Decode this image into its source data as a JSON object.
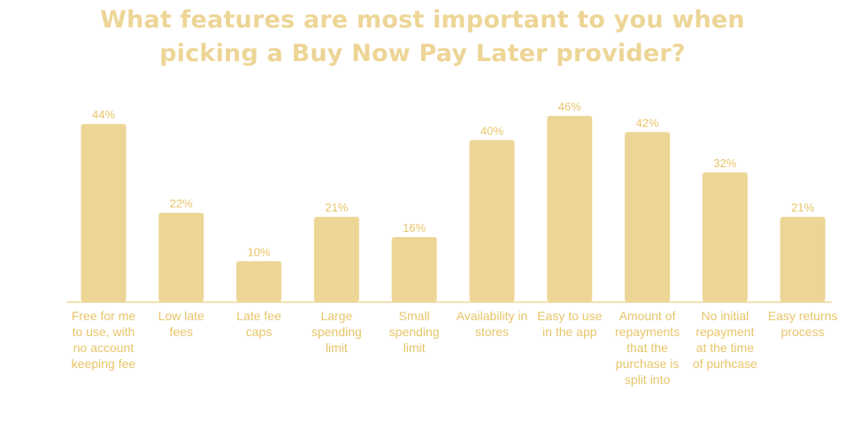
{
  "title_lines": [
    "What features are most important to you when",
    "picking a Buy Now Pay Later provider?"
  ],
  "colors": {
    "bar": "#EDD596",
    "title": "#EDD596",
    "text": "#E8C56A",
    "axis": "#EDD596"
  },
  "chart_data": {
    "type": "bar",
    "title": "What features are most important to you when picking a Buy Now Pay Later provider?",
    "categories": [
      "Free for me to use, with no account keeping fee",
      "Low late fees",
      "Late fee caps",
      "Large spending limit",
      "Small spending limit",
      "Availability in stores",
      "Easy to use in the app",
      "Amount of repayments that the purchase is split into",
      "No initial repayment at the time of purhcase",
      "Easy returns process"
    ],
    "category_lines": [
      [
        "Free for me",
        "to use, with",
        "no account",
        "keeping fee"
      ],
      [
        "Low late",
        "fees"
      ],
      [
        "Late fee",
        "caps"
      ],
      [
        "Large",
        "spending",
        "limit"
      ],
      [
        "Small",
        "spending",
        "limit"
      ],
      [
        "Availability in",
        "stores"
      ],
      [
        "Easy to use",
        "in the app"
      ],
      [
        "Amount of",
        "repayments",
        "that the",
        "purchase is",
        "split into"
      ],
      [
        "No initial",
        "repayment",
        "at the time",
        "of purhcase"
      ],
      [
        "Easy returns",
        "process"
      ]
    ],
    "values": [
      44,
      22,
      10,
      21,
      16,
      40,
      46,
      42,
      32,
      21
    ],
    "value_labels": [
      "44%",
      "22%",
      "10%",
      "21%",
      "16%",
      "40%",
      "46%",
      "42%",
      "32%",
      "21%"
    ],
    "unit": "%",
    "ylim": [
      0,
      50
    ],
    "grid": false,
    "legend": "none"
  }
}
